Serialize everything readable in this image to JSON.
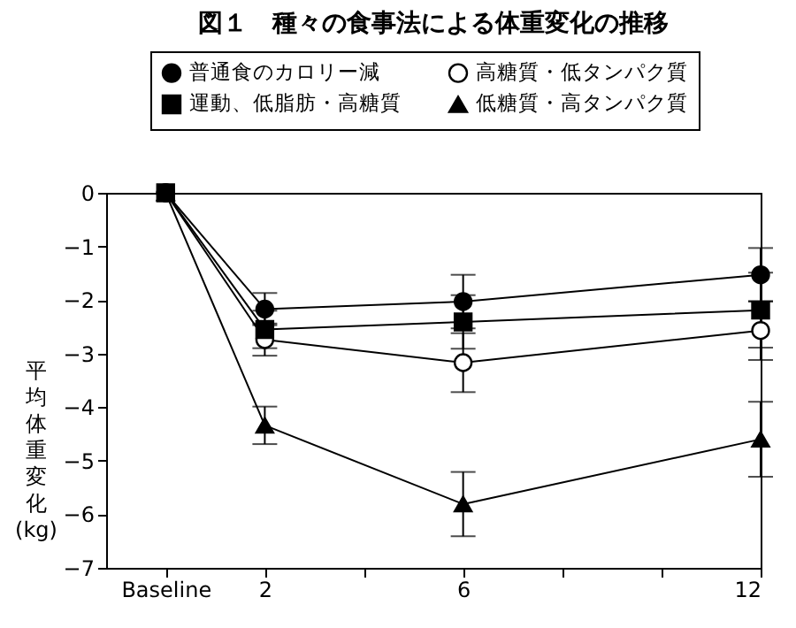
{
  "chart_data": {
    "type": "line",
    "title": "図１　種々の食事法による体重変化の推移",
    "ylabel": "平均体重変化(kg)",
    "x": [
      0,
      2,
      6,
      12
    ],
    "xlim": [
      -1.2,
      12
    ],
    "xticks": [
      {
        "value": 0,
        "label": "Baseline"
      },
      2,
      {
        "value": 4,
        "label": null
      },
      6,
      {
        "value": 8,
        "label": null
      },
      {
        "value": 10,
        "label": null
      },
      12
    ],
    "ylim": [
      -7,
      0
    ],
    "yticks": [
      0,
      -1,
      -2,
      -3,
      -4,
      -5,
      -6,
      -7
    ],
    "grid": false,
    "legend": "top",
    "line_style": "solid",
    "series": [
      {
        "name": "普通食のカロリー減",
        "color": "#000000",
        "marker": "circle",
        "values": [
          0,
          -2.17,
          -2.03,
          -1.53
        ],
        "errors": [
          null,
          0.3,
          0.5,
          0.5
        ]
      },
      {
        "name": "高糖質・低タンパク質",
        "color": "#ffffff",
        "marker": "circle",
        "values": [
          0,
          -2.74,
          -3.17,
          -2.57
        ],
        "errors": [
          null,
          0.3,
          0.55,
          0.55
        ]
      },
      {
        "name": "運動、低脂肪・高糖質",
        "color": "#000000",
        "marker": "square",
        "values": [
          0,
          -2.55,
          -2.41,
          -2.19
        ],
        "errors": [
          null,
          0.35,
          0.5,
          0.7
        ]
      },
      {
        "name": "低糖質・高タンパク質",
        "color": "#000000",
        "marker": "triangle",
        "values": [
          0,
          -4.34,
          -5.81,
          -4.6
        ],
        "errors": [
          null,
          0.35,
          0.6,
          0.7
        ]
      }
    ]
  }
}
